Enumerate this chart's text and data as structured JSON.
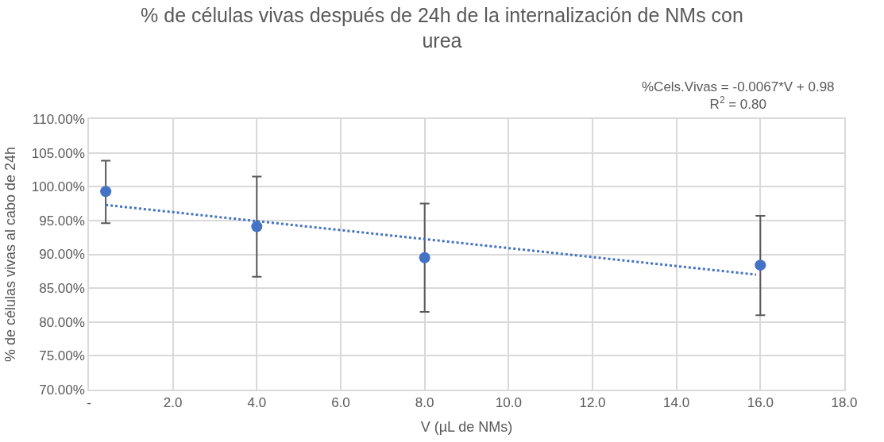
{
  "chart_data": {
    "type": "scatter",
    "title": "% de células vivas después de 24h de la internalización de NMs con urea",
    "xlabel": "V (µL de NMs)",
    "ylabel": "% de células vivas al cabo de 24h",
    "annotations": [
      "%Cels.Vivas = -0.0067*V + 0.98\nR$^{2}$ = 0.80"
    ],
    "series": [
      {
        "color": "#4472c4",
        "x": [
          0.4,
          4,
          8,
          16
        ],
        "values": [
          99.3,
          94.1,
          89.5,
          88.4
        ],
        "errors": [
          [
            94.6,
            103.85
          ],
          [
            86.7,
            101.5
          ],
          [
            81.5,
            97.5
          ],
          [
            81.0,
            95.7
          ]
        ],
        "marker": "circle"
      },
      {
        "type": "line",
        "color": "#4472c4",
        "x": [
          0.4,
          15.9
        ],
        "values": [
          97.3,
          87.0
        ],
        "line_style": "dotted",
        "marker": "none"
      }
    ],
    "xlim": [
      0,
      18
    ],
    "xticks": [
      {
        "value": 0,
        "label": "-"
      },
      {
        "value": 2,
        "label": "2.0"
      },
      {
        "value": 4,
        "label": "4.0"
      },
      {
        "value": 6,
        "label": "6.0"
      },
      {
        "value": 8,
        "label": "8.0"
      },
      {
        "value": 10,
        "label": "10.0"
      },
      {
        "value": 12,
        "label": "12.0"
      },
      {
        "value": 14,
        "label": "14.0"
      },
      {
        "value": 16,
        "label": "16.0"
      },
      {
        "value": 18,
        "label": "18.0"
      }
    ],
    "ylim": [
      70,
      110
    ],
    "yticks": [
      {
        "value": 70,
        "label": "70.00%"
      },
      {
        "value": 75,
        "label": "75.00%"
      },
      {
        "value": 80,
        "label": "80.00%"
      },
      {
        "value": 85,
        "label": "85.00%"
      },
      {
        "value": 90,
        "label": "90.00%"
      },
      {
        "value": 95,
        "label": "95.00%"
      },
      {
        "value": 100,
        "label": "100.00%"
      },
      {
        "value": 105,
        "label": "105.00%"
      },
      {
        "value": 110,
        "label": "110.00%"
      }
    ],
    "grid": true
  }
}
